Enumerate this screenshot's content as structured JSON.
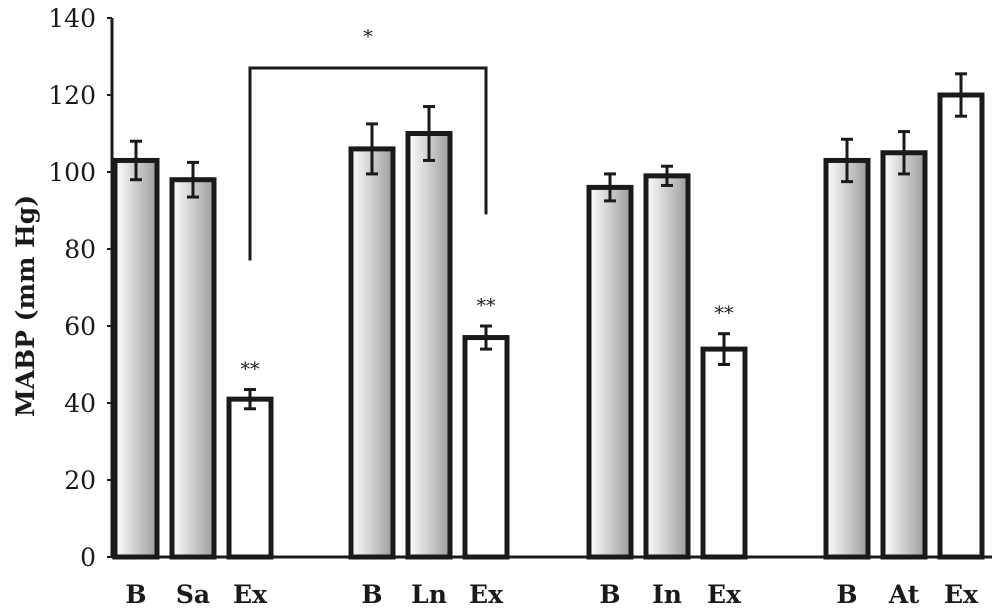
{
  "chart_data": {
    "type": "bar",
    "ylabel": "MABP (mm Hg)",
    "xlabel": "",
    "title": "",
    "ylim": [
      0,
      140
    ],
    "yticks": [
      0,
      20,
      40,
      60,
      80,
      100,
      120,
      140
    ],
    "grid": false,
    "legend": "none",
    "groups": [
      {
        "bars": [
          {
            "label": "B",
            "value": 103,
            "error": 5,
            "fill": "shaded",
            "annotation": ""
          },
          {
            "label": "Sa",
            "value": 98,
            "error": 4.5,
            "fill": "shaded",
            "annotation": ""
          },
          {
            "label": "Ex",
            "value": 41,
            "error": 2.5,
            "fill": "white",
            "annotation": "**"
          }
        ]
      },
      {
        "bars": [
          {
            "label": "B",
            "value": 106,
            "error": 6.5,
            "fill": "shaded",
            "annotation": ""
          },
          {
            "label": "Ln",
            "value": 110,
            "error": 7,
            "fill": "shaded",
            "annotation": ""
          },
          {
            "label": "Ex",
            "value": 57,
            "error": 3,
            "fill": "white",
            "annotation": "**"
          }
        ]
      },
      {
        "bars": [
          {
            "label": "B",
            "value": 96,
            "error": 3.5,
            "fill": "shaded",
            "annotation": ""
          },
          {
            "label": "In",
            "value": 99,
            "error": 2.5,
            "fill": "shaded",
            "annotation": ""
          },
          {
            "label": "Ex",
            "value": 54,
            "error": 4,
            "fill": "white",
            "annotation": "**"
          }
        ]
      },
      {
        "bars": [
          {
            "label": "B",
            "value": 103,
            "error": 5.5,
            "fill": "shaded",
            "annotation": ""
          },
          {
            "label": "At",
            "value": 105,
            "error": 5.5,
            "fill": "shaded",
            "annotation": ""
          },
          {
            "label": "Ex",
            "value": 120,
            "error": 5.5,
            "fill": "white",
            "annotation": ""
          }
        ]
      }
    ],
    "comparison": {
      "from_group": 0,
      "from_bar": 2,
      "to_group": 1,
      "to_bar": 2,
      "label": "*",
      "top_value": 127,
      "from_bottom_value": 77,
      "to_bottom_value": 89
    },
    "colors": {
      "bar_outline": "#1a1a1a",
      "shaded_light": "#ffffff",
      "shaded_dark": "#9c9c9c",
      "white_fill": "#ffffff",
      "axis": "#1a1a1a"
    }
  }
}
